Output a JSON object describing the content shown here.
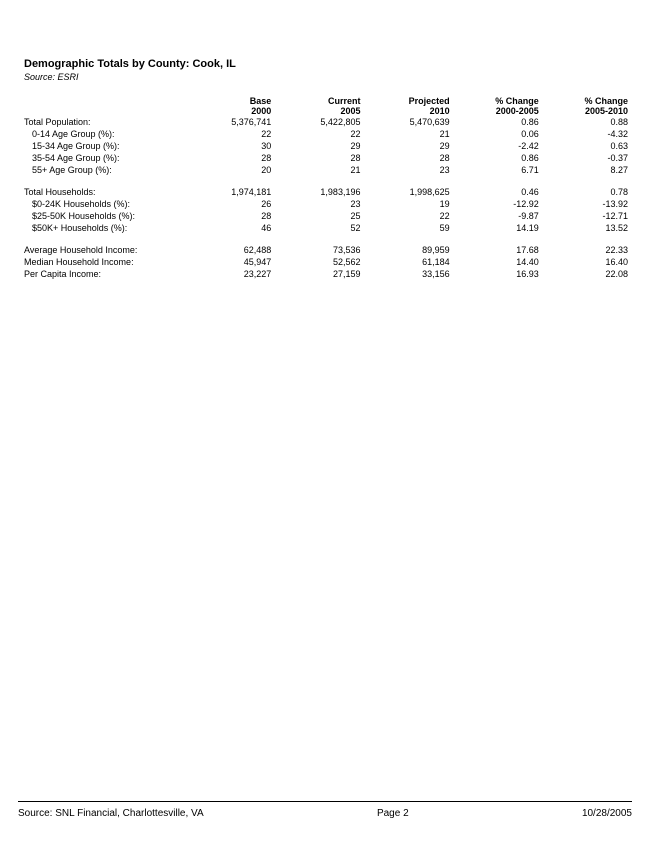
{
  "header": {
    "title": "Demographic Totals by County: Cook, IL",
    "source": "Source: ESRI"
  },
  "columns": {
    "label": "",
    "c1_top": "Base",
    "c1_bot": "2000",
    "c2_top": "Current",
    "c2_bot": "2005",
    "c3_top": "Projected",
    "c3_bot": "2010",
    "c4_top": "% Change",
    "c4_bot": "2000-2005",
    "c5_top": "% Change",
    "c5_bot": "2005-2010"
  },
  "rows": {
    "r0": {
      "label": "Total Population:",
      "c1": "5,376,741",
      "c2": "5,422,805",
      "c3": "5,470,639",
      "c4": "0.86",
      "c5": "0.88"
    },
    "r1": {
      "label": "0-14 Age Group (%):",
      "c1": "22",
      "c2": "22",
      "c3": "21",
      "c4": "0.06",
      "c5": "-4.32"
    },
    "r2": {
      "label": "15-34 Age Group (%):",
      "c1": "30",
      "c2": "29",
      "c3": "29",
      "c4": "-2.42",
      "c5": "0.63"
    },
    "r3": {
      "label": "35-54 Age Group (%):",
      "c1": "28",
      "c2": "28",
      "c3": "28",
      "c4": "0.86",
      "c5": "-0.37"
    },
    "r4": {
      "label": "55+ Age Group (%):",
      "c1": "20",
      "c2": "21",
      "c3": "23",
      "c4": "6.71",
      "c5": "8.27"
    },
    "r5": {
      "label": "Total Households:",
      "c1": "1,974,181",
      "c2": "1,983,196",
      "c3": "1,998,625",
      "c4": "0.46",
      "c5": "0.78"
    },
    "r6": {
      "label": "$0-24K Households (%):",
      "c1": "26",
      "c2": "23",
      "c3": "19",
      "c4": "-12.92",
      "c5": "-13.92"
    },
    "r7": {
      "label": "$25-50K Households (%):",
      "c1": "28",
      "c2": "25",
      "c3": "22",
      "c4": "-9.87",
      "c5": "-12.71"
    },
    "r8": {
      "label": "$50K+ Households (%):",
      "c1": "46",
      "c2": "52",
      "c3": "59",
      "c4": "14.19",
      "c5": "13.52"
    },
    "r9": {
      "label": "Average Household Income:",
      "c1": "62,488",
      "c2": "73,536",
      "c3": "89,959",
      "c4": "17.68",
      "c5": "22.33"
    },
    "r10": {
      "label": "Median Household Income:",
      "c1": "45,947",
      "c2": "52,562",
      "c3": "61,184",
      "c4": "14.40",
      "c5": "16.40"
    },
    "r11": {
      "label": "Per Capita Income:",
      "c1": "23,227",
      "c2": "27,159",
      "c3": "33,156",
      "c4": "16.93",
      "c5": "22.08"
    }
  },
  "footer": {
    "source": "Source: SNL Financial, Charlottesville, VA",
    "page": "Page 2",
    "date": "10/28/2005"
  },
  "style": {
    "background_color": "#ffffff",
    "text_color": "#000000",
    "title_fontsize": 11,
    "body_fontsize": 9,
    "footer_fontsize": 10,
    "rule_color": "#000000"
  }
}
